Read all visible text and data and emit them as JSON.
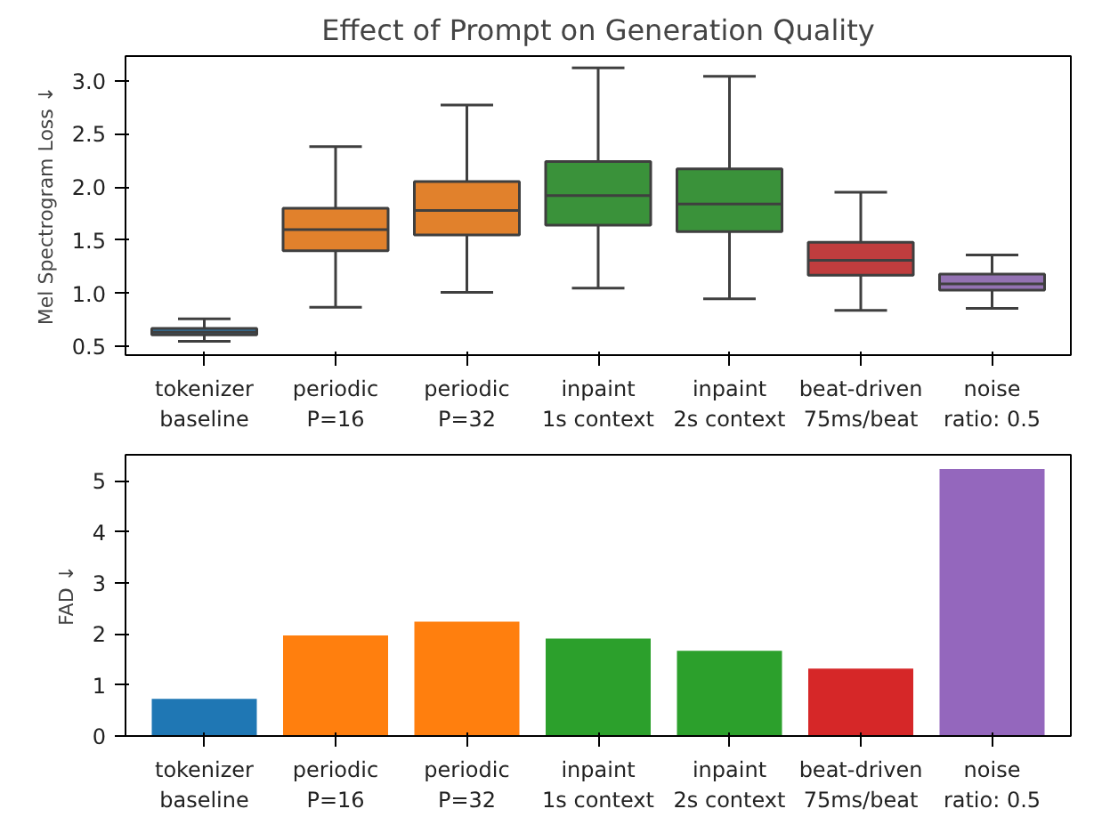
{
  "chart_data": [
    {
      "type": "box",
      "title": "Effect of Prompt on Generation Quality",
      "ylabel": "Mel Spectrogram Loss ↓",
      "categories": [
        "tokenizer\nbaseline",
        "periodic\nP=16",
        "periodic\nP=32",
        "inpaint\n1s context",
        "inpaint\n2s context",
        "beat-driven\n75ms/beat",
        "noise\nratio: 0.5"
      ],
      "colors": [
        "#3274a1",
        "#e1812c",
        "#e1812c",
        "#3a923a",
        "#3a923a",
        "#c03d3e",
        "#9372b2"
      ],
      "boxes": [
        {
          "low": 0.55,
          "q1": 0.61,
          "median": 0.635,
          "q3": 0.67,
          "high": 0.76
        },
        {
          "low": 0.87,
          "q1": 1.4,
          "median": 1.6,
          "q3": 1.8,
          "high": 2.38
        },
        {
          "low": 1.01,
          "q1": 1.55,
          "median": 1.78,
          "q3": 2.05,
          "high": 2.77
        },
        {
          "low": 1.05,
          "q1": 1.64,
          "median": 1.92,
          "q3": 2.24,
          "high": 3.12
        },
        {
          "low": 0.95,
          "q1": 1.58,
          "median": 1.84,
          "q3": 2.17,
          "high": 3.04
        },
        {
          "low": 0.84,
          "q1": 1.17,
          "median": 1.31,
          "q3": 1.48,
          "high": 1.95
        },
        {
          "low": 0.86,
          "q1": 1.03,
          "median": 1.09,
          "q3": 1.18,
          "high": 1.36
        }
      ],
      "ylim": [
        0.42,
        3.23
      ],
      "yticks": [
        0.5,
        {
          "value": 1,
          "label": "1.0"
        },
        1.5,
        {
          "value": 2,
          "label": "2.0"
        },
        2.5,
        {
          "value": 3,
          "label": "3.0"
        }
      ],
      "grid": false
    },
    {
      "type": "bar",
      "ylabel": "FAD ↓",
      "categories": [
        "tokenizer\nbaseline",
        "periodic\nP=16",
        "periodic\nP=32",
        "inpaint\n1s context",
        "inpaint\n2s context",
        "beat-driven\n75ms/beat",
        "noise\nratio: 0.5"
      ],
      "values": [
        0.73,
        1.97,
        2.24,
        1.91,
        1.67,
        1.32,
        5.23
      ],
      "colors": [
        "#1f77b4",
        "#ff7f0e",
        "#ff7f0e",
        "#2ca02c",
        "#2ca02c",
        "#d62728",
        "#9467bd"
      ],
      "ylim": [
        0,
        5.51
      ],
      "yticks": [
        0,
        1,
        2,
        3,
        4,
        5
      ],
      "grid": false
    }
  ]
}
